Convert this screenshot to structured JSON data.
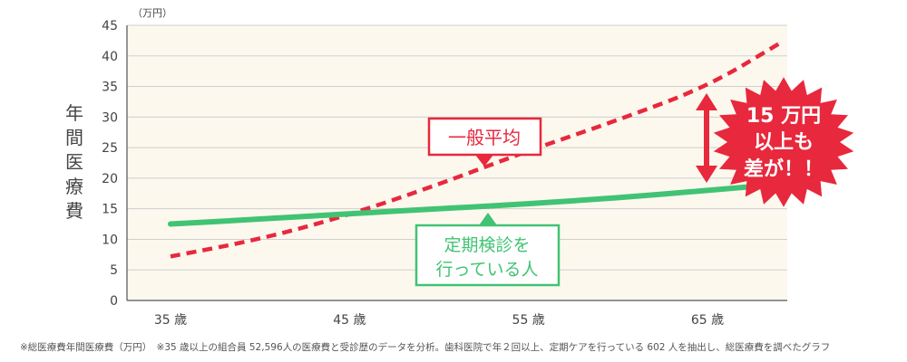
{
  "chart_data": {
    "type": "line",
    "unit_label": "（万円）",
    "ylabel": "年間医療費",
    "ylim": [
      0,
      45
    ],
    "yticks": [
      0,
      5,
      10,
      15,
      20,
      25,
      30,
      35,
      40,
      45
    ],
    "xticks": [
      "35 歳",
      "45 歳",
      "55 歳",
      "65 歳"
    ],
    "xtick_values": [
      35,
      45,
      55,
      65
    ],
    "xlim": [
      35,
      69
    ],
    "grid": true,
    "series": [
      {
        "name": "一般平均",
        "style": "dashed",
        "color": "#e8283c",
        "points": [
          [
            35,
            7.2
          ],
          [
            40,
            10
          ],
          [
            45,
            14
          ],
          [
            50,
            19
          ],
          [
            55,
            24.5
          ],
          [
            60,
            29.5
          ],
          [
            65,
            35
          ],
          [
            69,
            42
          ]
        ]
      },
      {
        "name": "定期検診を行っている人",
        "style": "solid",
        "color": "#41c373",
        "points": [
          [
            35,
            12.5
          ],
          [
            40,
            13.3
          ],
          [
            45,
            14.2
          ],
          [
            50,
            15
          ],
          [
            55,
            15.8
          ],
          [
            60,
            16.8
          ],
          [
            65,
            18
          ],
          [
            69,
            19
          ]
        ]
      }
    ],
    "annotations": {
      "general_label": "一般平均",
      "checkup_label_line1": "定期検診を",
      "checkup_label_line2": "行っている人",
      "burst_line1": "15 万円",
      "burst_line2": "以上も",
      "burst_line3": "差が！！"
    }
  },
  "colors": {
    "plot_bg": "#fcf8ee",
    "grid": "#cfcfcf",
    "red": "#e8283c",
    "green": "#41c373"
  },
  "footnote": "※総医療費年間医療費（万円）　※35 歳以上の組合員 52,596人の医療費と受診歴のデータを分析。歯科医院で年２回以上、定期ケアを行っている 602 人を抽出し、総医療費を調べたグラフ"
}
